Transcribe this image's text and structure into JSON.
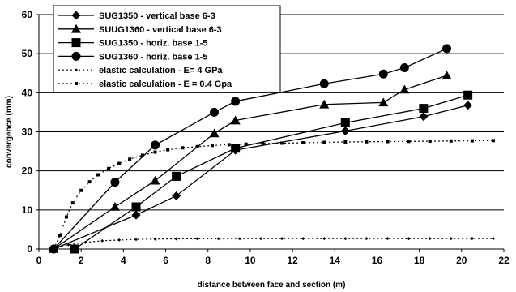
{
  "chart_data": {
    "type": "line",
    "xlabel": "distance between face and section (m)",
    "ylabel": "convergence (mm)",
    "xlim": [
      0,
      22
    ],
    "ylim": [
      0,
      60
    ],
    "xticks": [
      0,
      2,
      4,
      6,
      8,
      10,
      12,
      14,
      16,
      18,
      20,
      22
    ],
    "yticks": [
      0,
      10,
      20,
      30,
      40,
      50,
      60
    ],
    "grid": "horizontal",
    "legend_position": "top-left",
    "series": [
      {
        "name": "SUG1350 - vertical base 6-3",
        "marker": "diamond",
        "line": "solid",
        "color": "#000000",
        "x": [
          0.7,
          4.6,
          6.5,
          9.3,
          14.5,
          18.2,
          20.3
        ],
        "y": [
          0,
          8.7,
          13.6,
          25.3,
          30.2,
          33.9,
          36.8
        ]
      },
      {
        "name": "SUUG1360 - vertical base 6-3",
        "marker": "triangle",
        "line": "solid",
        "color": "#000000",
        "x": [
          0.7,
          3.6,
          5.5,
          8.3,
          9.3,
          13.5,
          16.3,
          17.3,
          19.3
        ],
        "y": [
          0,
          10.8,
          17.5,
          29.6,
          32.9,
          37.0,
          37.5,
          40.8,
          44.4
        ]
      },
      {
        "name": "SUG1350 - horiz. base 1-5",
        "marker": "square",
        "line": "solid",
        "color": "#000000",
        "x": [
          1.7,
          4.6,
          6.5,
          9.3,
          14.5,
          18.2,
          20.3
        ],
        "y": [
          0,
          10.8,
          18.6,
          25.8,
          32.3,
          36.0,
          39.4
        ]
      },
      {
        "name": "SUG1360 - horiz. base 1-5",
        "marker": "circle",
        "line": "solid",
        "color": "#000000",
        "x": [
          0.7,
          3.6,
          5.5,
          8.3,
          9.3,
          13.5,
          16.3,
          17.3,
          19.3
        ],
        "y": [
          0,
          17.1,
          26.6,
          35.0,
          37.8,
          42.3,
          44.8,
          46.4,
          51.3
        ]
      },
      {
        "name": "elastic calculation - E=  4 GPa",
        "marker": "small-diamond",
        "line": "dotted",
        "color": "#000000",
        "x": [
          0.7,
          1.4,
          2.2,
          3.0,
          3.8,
          4.6,
          5.5,
          6.5,
          7.5,
          8.5,
          9.5,
          10.5,
          11.5,
          12.5,
          13.5,
          14.5,
          15.5,
          16.5,
          17.5,
          18.5,
          19.5,
          20.5,
          21.5
        ],
        "y": [
          0,
          1.1,
          1.7,
          2.1,
          2.3,
          2.45,
          2.55,
          2.6,
          2.63,
          2.65,
          2.66,
          2.67,
          2.68,
          2.68,
          2.68,
          2.68,
          2.68,
          2.68,
          2.68,
          2.68,
          2.68,
          2.68,
          2.68
        ]
      },
      {
        "name": "elastic calculation - E = 0.4 Gpa",
        "marker": "small-square",
        "line": "dotted",
        "color": "#000000",
        "x": [
          0.7,
          1.0,
          1.3,
          1.6,
          2.0,
          2.4,
          2.8,
          3.3,
          3.8,
          4.3,
          4.9,
          5.5,
          6.1,
          6.8,
          7.5,
          8.2,
          9.0,
          9.8,
          10.6,
          11.5,
          12.5,
          13.5,
          14.5,
          15.5,
          16.5,
          17.5,
          18.5,
          19.5,
          20.5,
          21.5
        ],
        "y": [
          0,
          3.5,
          8.2,
          11.8,
          15.0,
          17.2,
          19.0,
          20.6,
          21.9,
          23.0,
          24.0,
          24.8,
          25.4,
          25.9,
          26.2,
          26.5,
          26.7,
          26.85,
          27.0,
          27.1,
          27.2,
          27.3,
          27.4,
          27.45,
          27.5,
          27.55,
          27.6,
          27.65,
          27.7,
          27.75
        ]
      }
    ]
  }
}
